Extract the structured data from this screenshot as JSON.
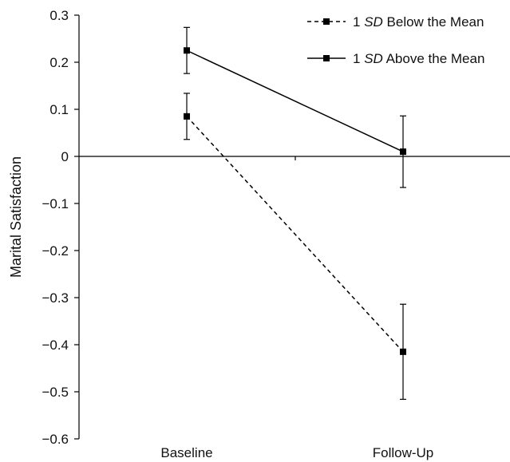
{
  "chart_data": {
    "type": "line",
    "title": "",
    "xlabel": "",
    "ylabel": "Marital Satisfaction",
    "categories": [
      "Baseline",
      "Follow-Up"
    ],
    "y_ticks": [
      "0.3",
      "0.2",
      "0.1",
      "0",
      "−0.1",
      "−0.2",
      "−0.3",
      "−0.4",
      "−0.5",
      "−0.6"
    ],
    "y_tick_values": [
      0.3,
      0.2,
      0.1,
      0,
      -0.1,
      -0.2,
      -0.3,
      -0.4,
      -0.5,
      -0.6
    ],
    "ylim": [
      -0.6,
      0.3
    ],
    "grid": false,
    "legend_position": "top-right",
    "series": [
      {
        "name_prefix": "1 ",
        "name_italic": "SD",
        "name_suffix": " Below the Mean",
        "line_style": "dashed",
        "marker": "square",
        "values": [
          0.085,
          -0.415
        ],
        "error": [
          0.049,
          0.101
        ]
      },
      {
        "name_prefix": "1 ",
        "name_italic": "SD",
        "name_suffix": " Above the Mean",
        "line_style": "solid",
        "marker": "square",
        "values": [
          0.225,
          0.01
        ],
        "error": [
          0.049,
          0.076
        ]
      }
    ],
    "colors": {
      "line": "#000000",
      "text": "#111111"
    }
  }
}
